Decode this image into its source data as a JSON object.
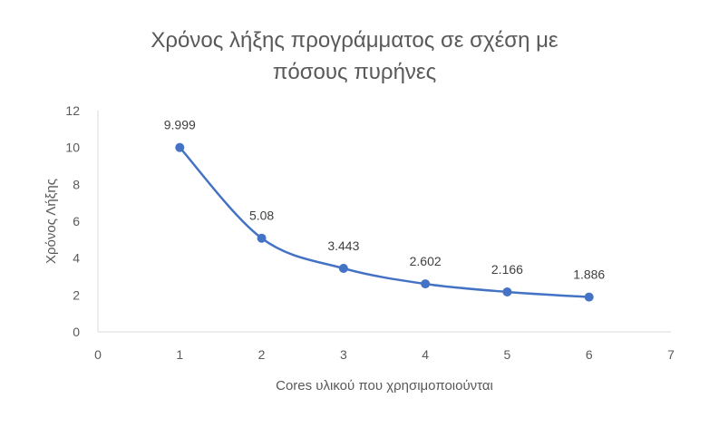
{
  "chart_data": {
    "type": "scatter",
    "title_lines": [
      "Χρόνος λήξης προγράμματος σε σχέση με",
      "πόσους πυρήνες"
    ],
    "xlabel": "Cores υλικού που χρησιμοποιούνται",
    "ylabel": "Χρόνος Λήξης",
    "x": [
      1,
      2,
      3,
      4,
      5,
      6
    ],
    "y": [
      9.999,
      5.08,
      3.443,
      2.602,
      2.166,
      1.886
    ],
    "data_labels": [
      "9.999",
      "5.08",
      "3.443",
      "2.602",
      "2.166",
      "1.886"
    ],
    "xlim": [
      0,
      7
    ],
    "ylim": [
      0,
      12
    ],
    "x_ticks": [
      0,
      1,
      2,
      3,
      4,
      5,
      6,
      7
    ],
    "y_ticks": [
      0,
      2,
      4,
      6,
      8,
      10,
      12
    ],
    "line_style": "smooth",
    "series_color": "#4472C4",
    "grid": false
  }
}
